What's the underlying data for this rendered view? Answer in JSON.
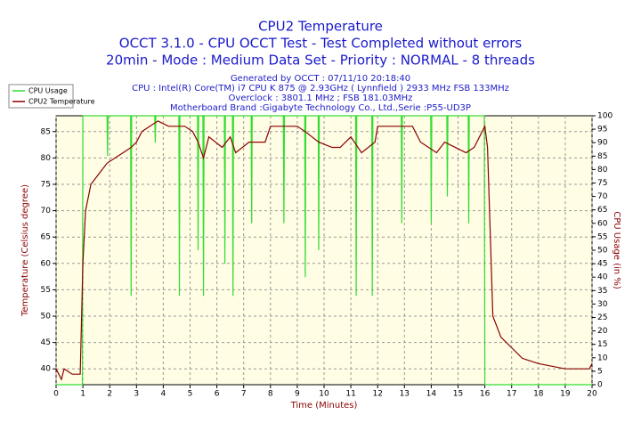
{
  "chart_data": {
    "type": "line",
    "title": "CPU2 Temperature",
    "subtitle": [
      "OCCT 3.1.0 - CPU OCCT Test - Test Completed without errors",
      "20min - Mode : Medium Data Set - Priority : NORMAL - 8 threads"
    ],
    "info": [
      "Generated by OCCT : 07/11/10 20:18:40",
      "CPU : Intel(R) Core(TM) i7 CPU K 875 @ 2.93GHz ( Lynnfield ) 2933 MHz FSB 133MHz",
      "Overclock : 3801.1 MHz ; FSB 181.03MHz",
      "Motherboard Brand :Gigabyte Technology Co., Ltd.,Serie :P55-UD3P"
    ],
    "xlabel": "Time (Minutes)",
    "ylabel": "Temperature (Celsius degree)",
    "y2label": "CPU Usage (in %)",
    "xlim": [
      0,
      20
    ],
    "xticks": [
      0,
      1,
      2,
      3,
      4,
      5,
      6,
      7,
      8,
      9,
      10,
      11,
      12,
      13,
      14,
      15,
      16,
      17,
      18,
      19,
      20
    ],
    "ylim": [
      37,
      88
    ],
    "yticks": [
      40,
      45,
      50,
      55,
      60,
      65,
      70,
      75,
      80,
      85
    ],
    "y2lim": [
      0,
      100
    ],
    "y2ticks": [
      0,
      5,
      10,
      15,
      20,
      25,
      30,
      35,
      40,
      45,
      50,
      55,
      60,
      65,
      70,
      75,
      80,
      85,
      90,
      95,
      100
    ],
    "grid": true,
    "legend": "top-left",
    "series": [
      {
        "name": "CPU Usage",
        "color": "#33dd33",
        "axis": "y2",
        "x": [
          0,
          0.98,
          1.0,
          1.9,
          1.92,
          1.94,
          2.78,
          2.8,
          2.82,
          3.68,
          3.7,
          3.72,
          4.58,
          4.6,
          4.62,
          5.28,
          5.3,
          5.32,
          5.48,
          5.5,
          5.52,
          6.28,
          6.3,
          6.32,
          6.58,
          6.6,
          6.62,
          7.28,
          7.3,
          7.32,
          8.48,
          8.5,
          8.52,
          9.28,
          9.3,
          9.32,
          9.78,
          9.8,
          9.82,
          11.18,
          11.2,
          11.22,
          11.78,
          11.8,
          11.82,
          12.88,
          12.9,
          12.92,
          13.98,
          14.0,
          14.02,
          14.58,
          14.6,
          14.62,
          15.38,
          15.4,
          15.42,
          15.98,
          16.0,
          20
        ],
        "values": [
          0,
          0,
          100,
          100,
          85,
          100,
          100,
          33,
          100,
          100,
          90,
          100,
          100,
          33,
          100,
          100,
          50,
          100,
          100,
          33,
          100,
          100,
          45,
          100,
          100,
          33,
          100,
          100,
          60,
          100,
          100,
          60,
          100,
          100,
          40,
          100,
          100,
          50,
          100,
          100,
          33,
          100,
          100,
          33,
          100,
          100,
          60,
          100,
          100,
          60,
          100,
          100,
          70,
          100,
          100,
          60,
          100,
          100,
          0,
          0
        ]
      },
      {
        "name": "CPU2 Temperature",
        "color": "#8b0000",
        "x": [
          0,
          0.2,
          0.3,
          0.6,
          0.9,
          1.0,
          1.1,
          1.3,
          1.6,
          1.9,
          2.2,
          2.5,
          2.8,
          3.0,
          3.2,
          3.5,
          3.8,
          4.2,
          4.8,
          5.1,
          5.3,
          5.5,
          5.7,
          6.2,
          6.5,
          6.7,
          7.2,
          7.8,
          8.0,
          9.0,
          9.3,
          9.8,
          10.3,
          10.6,
          11.0,
          11.4,
          11.9,
          12.0,
          13.3,
          13.6,
          14.2,
          14.5,
          15.3,
          15.6,
          16.0,
          16.1,
          16.3,
          16.6,
          17.0,
          17.4,
          18.0,
          19.0,
          19.9,
          20
        ],
        "values": [
          40,
          38,
          40,
          39,
          39,
          60,
          70,
          75,
          77,
          79,
          80,
          81,
          82,
          83,
          85,
          86,
          87,
          86,
          86,
          85,
          83,
          80,
          84,
          82,
          84,
          81,
          83,
          83,
          86,
          86,
          85,
          83,
          82,
          82,
          84,
          81,
          83,
          86,
          86,
          83,
          81,
          83,
          81,
          82,
          86,
          82,
          50,
          46,
          44,
          42,
          41,
          40,
          40,
          41
        ]
      }
    ]
  }
}
